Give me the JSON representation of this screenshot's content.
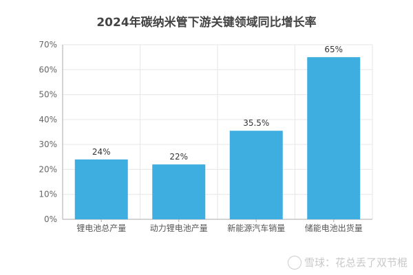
{
  "chart_data": {
    "type": "bar",
    "title": "2024年碳纳米管下游关键领域同比增长率",
    "categories": [
      "锂电池总产量",
      "动力锂电池产量",
      "新能源汽车销量",
      "储能电池出货量"
    ],
    "values": [
      24,
      22,
      35.5,
      65
    ],
    "data_labels": [
      "24%",
      "22%",
      "35.5%",
      "65%"
    ],
    "ylim": [
      0,
      70
    ],
    "yticks": [
      "0%",
      "10%",
      "20%",
      "30%",
      "40%",
      "50%",
      "60%",
      "70%"
    ],
    "grid": true,
    "bar_color": "#3eaee0"
  },
  "watermark": "雪球：花总丢了双节棍"
}
